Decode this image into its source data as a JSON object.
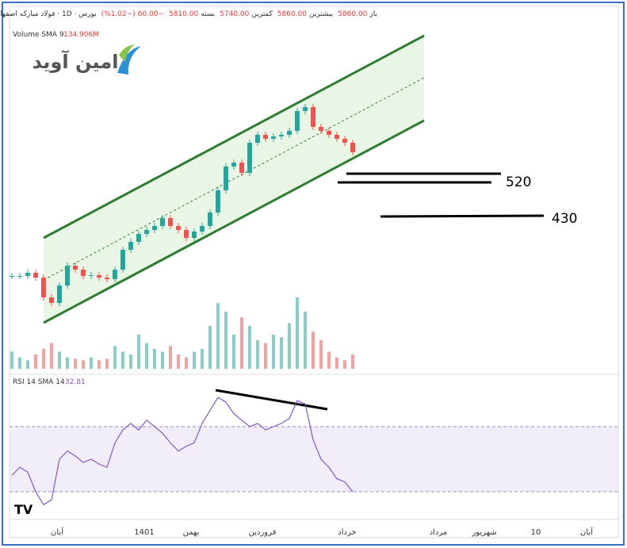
{
  "header": {
    "open_label": "باز",
    "open": "5860.00",
    "high_label": "بیشترین",
    "high": "5860.00",
    "low_label": "کمترین",
    "low": "5740.00",
    "close_label": "بسته",
    "close": "5810.00",
    "change": "−60.00",
    "change_pct": "(−1.02%)",
    "symbol_line": "بورس · 1D · فولاد مبارکه اصفهان"
  },
  "logo": "امین آوید",
  "price": {
    "values": [
      3470,
      3470,
      3530,
      3440,
      3065,
      2960,
      3290,
      3665,
      3590,
      3470,
      3485,
      3440,
      3410,
      3590,
      3965,
      4115,
      4265,
      4340,
      4415,
      4565,
      4415,
      4340,
      4190,
      4310,
      4415,
      4670,
      5090,
      5540,
      5615,
      5420,
      5990,
      6140,
      6065,
      6110,
      6140,
      6215,
      6590,
      6665,
      6290,
      6215,
      6140,
      6065,
      5990,
      5810
    ],
    "up_color": "#26a69a",
    "down_color": "#ef5350"
  },
  "annotations": [
    "520",
    "430"
  ],
  "volume": {
    "label": "Volume SMA 9",
    "sma": "134.906M",
    "values": [
      60,
      40,
      30,
      50,
      70,
      90,
      60,
      40,
      35,
      30,
      40,
      30,
      35,
      80,
      60,
      50,
      120,
      90,
      70,
      60,
      80,
      50,
      40,
      60,
      70,
      150,
      230,
      200,
      120,
      180,
      150,
      100,
      90,
      120,
      110,
      160,
      250,
      200,
      130,
      100,
      60,
      40,
      30,
      50
    ]
  },
  "rsi": {
    "label": "RSI 14 SMA 14",
    "last": "32.81",
    "values": [
      40,
      45,
      42,
      30,
      22,
      25,
      50,
      55,
      52,
      48,
      50,
      47,
      45,
      60,
      68,
      72,
      68,
      74,
      70,
      66,
      60,
      55,
      58,
      60,
      72,
      80,
      88,
      85,
      78,
      74,
      70,
      72,
      68,
      70,
      72,
      75,
      86,
      84,
      62,
      50,
      45,
      38,
      36,
      30
    ],
    "bands": [
      30,
      70
    ],
    "color": "#7e57c2"
  },
  "x_labels": [
    "آبان",
    "1401",
    "بهمن",
    "فروردین",
    "خرداد",
    "مرداد",
    "شهریور",
    "10",
    "آبان"
  ]
}
